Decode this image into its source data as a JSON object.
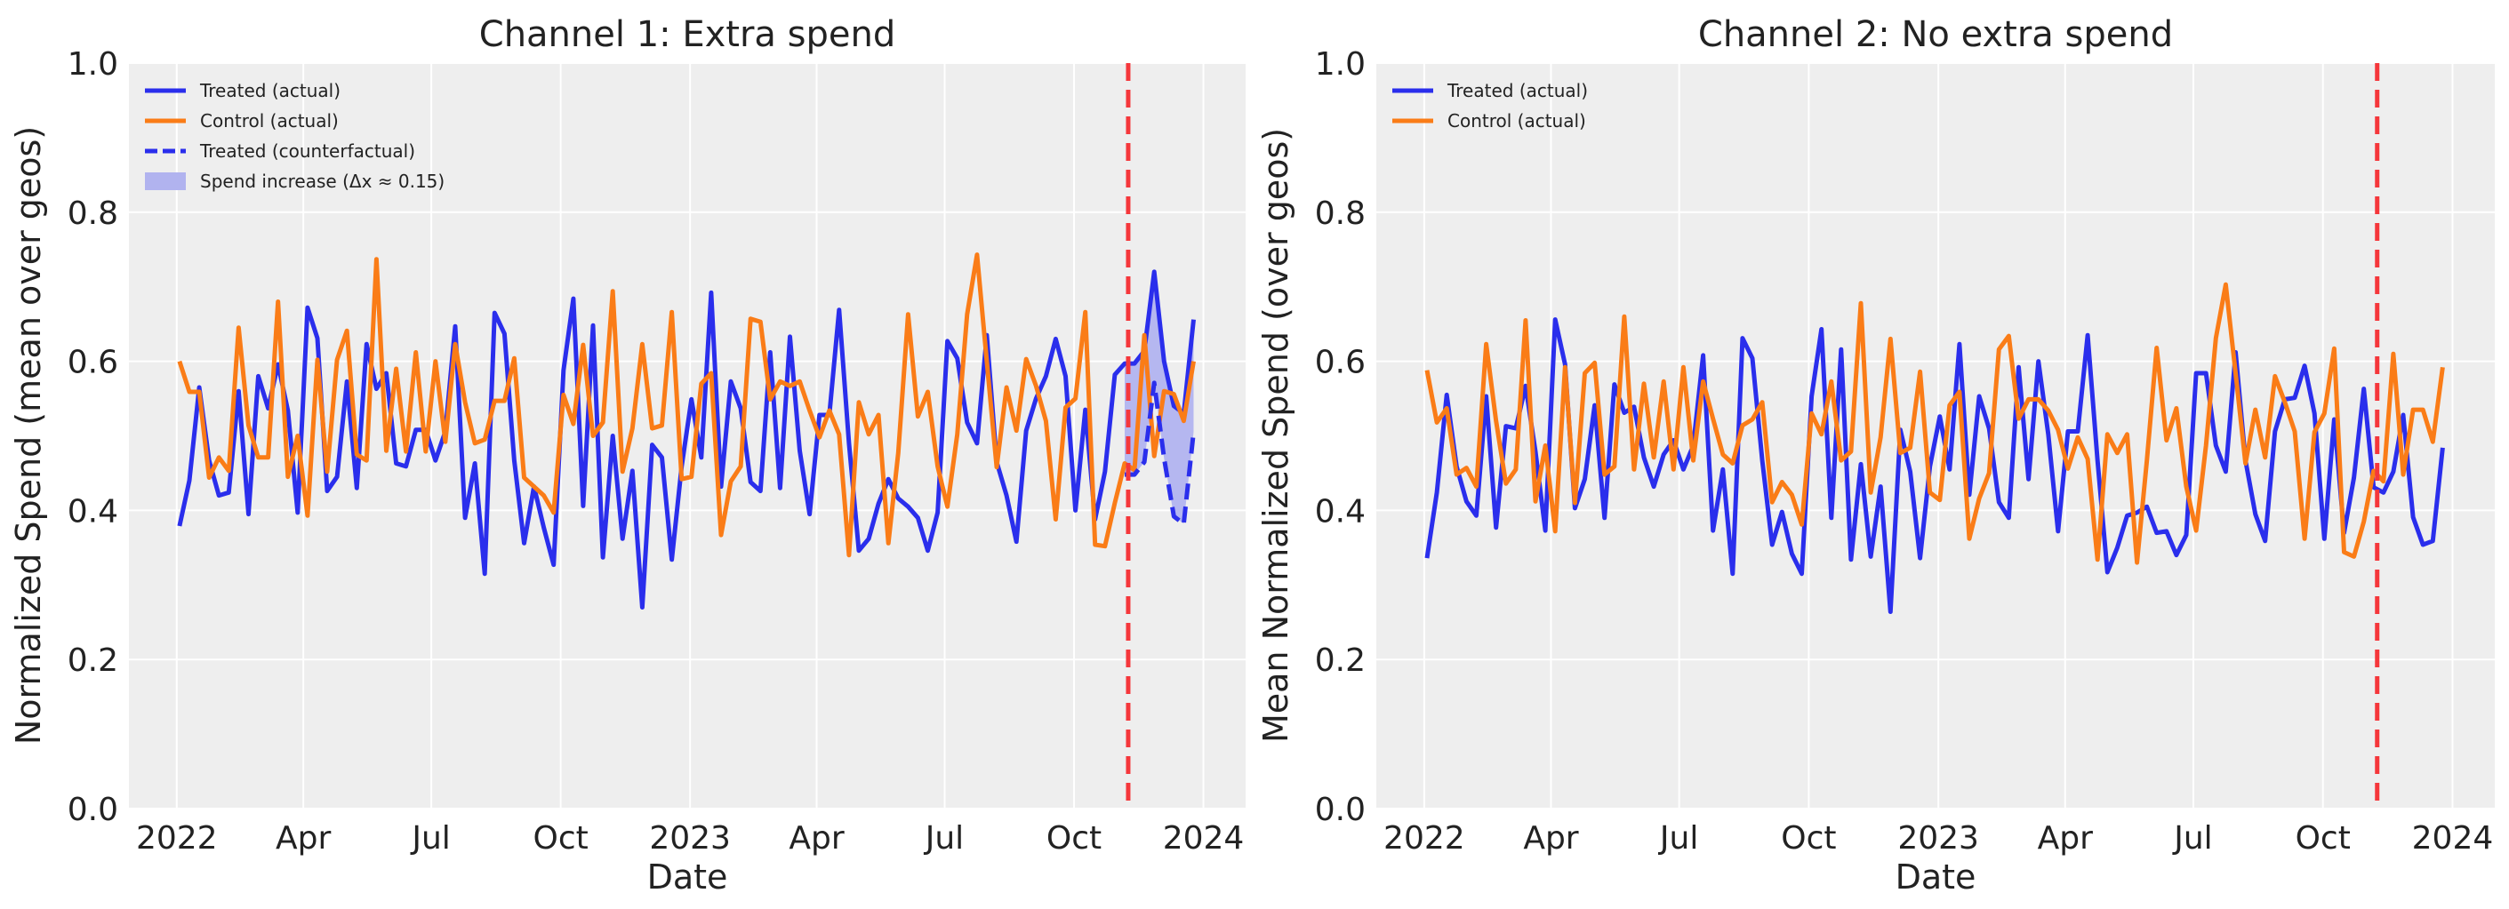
{
  "chart_data": [
    {
      "type": "line",
      "title": "Channel 1: Extra spend",
      "xlabel": "Date",
      "ylabel": "Normalized Spend (mean over geos)",
      "ylim": [
        0,
        1
      ],
      "xlim": [
        "2021-11-28",
        "2024-01-31"
      ],
      "yticks": [
        0.0,
        0.2,
        0.4,
        0.6,
        0.8,
        1.0
      ],
      "ytick_labels": [
        "0.0",
        "0.2",
        "0.4",
        "0.6",
        "0.8",
        "1.0"
      ],
      "xticks": [
        "2022-01-01",
        "2022-04-01",
        "2022-07-01",
        "2022-10-01",
        "2023-01-01",
        "2023-04-01",
        "2023-07-01",
        "2023-10-01",
        "2024-01-01"
      ],
      "xtick_labels": [
        "2022",
        "Apr",
        "Jul",
        "Oct",
        "2023",
        "Apr",
        "Jul",
        "Oct",
        "2024"
      ],
      "grid": true,
      "legend_position": "top-left",
      "intervention_date": "2023-11-06",
      "series": [
        {
          "name": "Treated (actual)",
          "color": "#2a2eec",
          "style": "solid",
          "values": [
            0.379,
            0.44,
            0.565,
            0.467,
            0.42,
            0.424,
            0.56,
            0.395,
            0.58,
            0.537,
            0.596,
            0.534,
            0.397,
            0.672,
            0.631,
            0.426,
            0.445,
            0.573,
            0.43,
            0.623,
            0.563,
            0.584,
            0.463,
            0.459,
            0.508,
            0.508,
            0.467,
            0.506,
            0.647,
            0.39,
            0.463,
            0.315,
            0.665,
            0.637,
            0.467,
            0.356,
            0.432,
            0.377,
            0.327,
            0.588,
            0.684,
            0.406,
            0.648,
            0.337,
            0.5,
            0.362,
            0.453,
            0.27,
            0.488,
            0.471,
            0.334,
            0.459,
            0.549,
            0.471,
            0.692,
            0.432,
            0.573,
            0.537,
            0.438,
            0.426,
            0.612,
            0.43,
            0.633,
            0.48,
            0.395,
            0.528,
            0.528,
            0.669,
            0.49,
            0.346,
            0.362,
            0.409,
            0.442,
            0.416,
            0.405,
            0.39,
            0.346,
            0.397,
            0.627,
            0.604,
            0.518,
            0.49,
            0.635,
            0.465,
            0.42,
            0.358,
            0.507,
            0.55,
            0.58,
            0.63,
            0.58,
            0.4,
            0.535,
            0.388,
            0.452,
            0.582,
            0.597,
            0.597,
            0.614,
            0.72,
            0.6,
            0.54,
            0.53,
            0.656
          ]
        },
        {
          "name": "Control (actual)",
          "color": "#fa7c17",
          "style": "solid",
          "values": [
            0.6,
            0.559,
            0.559,
            0.444,
            0.471,
            0.453,
            0.645,
            0.514,
            0.471,
            0.471,
            0.68,
            0.445,
            0.5,
            0.393,
            0.602,
            0.452,
            0.602,
            0.641,
            0.475,
            0.467,
            0.737,
            0.48,
            0.59,
            0.479,
            0.612,
            0.479,
            0.6,
            0.492,
            0.623,
            0.545,
            0.49,
            0.495,
            0.547,
            0.547,
            0.604,
            0.444,
            0.432,
            0.42,
            0.397,
            0.555,
            0.516,
            0.622,
            0.5,
            0.518,
            0.694,
            0.452,
            0.51,
            0.623,
            0.51,
            0.514,
            0.666,
            0.442,
            0.445,
            0.57,
            0.584,
            0.367,
            0.439,
            0.459,
            0.657,
            0.653,
            0.549,
            0.573,
            0.567,
            0.573,
            0.534,
            0.498,
            0.534,
            0.502,
            0.34,
            0.545,
            0.502,
            0.528,
            0.356,
            0.477,
            0.663,
            0.526,
            0.559,
            0.459,
            0.405,
            0.502,
            0.663,
            0.743,
            0.6,
            0.458,
            0.565,
            0.507,
            0.603,
            0.567,
            0.52,
            0.388,
            0.538,
            0.55,
            0.666,
            0.354,
            0.352,
            0.41,
            0.463,
            0.454,
            0.635,
            0.473,
            0.56,
            0.556,
            0.52,
            0.6
          ]
        },
        {
          "name": "Treated (counterfactual)",
          "color": "#2a2eec",
          "style": "dashed",
          "dates": [
            "2023-11-06",
            "2023-11-13",
            "2023-11-20",
            "2023-11-27",
            "2023-12-04",
            "2023-12-11",
            "2023-12-18",
            "2023-12-25"
          ],
          "values": [
            0.448,
            0.448,
            0.465,
            0.571,
            0.47,
            0.392,
            0.382,
            0.505
          ]
        }
      ],
      "fill": {
        "name": "Spend increase (Δx ≈ 0.15)",
        "color": "#b1b3ef",
        "between": [
          "Treated (counterfactual)",
          "Treated (actual)"
        ]
      }
    },
    {
      "type": "line",
      "title": "Channel 2: No extra spend",
      "xlabel": "Date",
      "ylabel": "Mean Normalized Spend (over geos)",
      "ylim": [
        0,
        1
      ],
      "xlim": [
        "2021-11-28",
        "2024-01-31"
      ],
      "yticks": [
        0.0,
        0.2,
        0.4,
        0.6,
        0.8,
        1.0
      ],
      "ytick_labels": [
        "0.0",
        "0.2",
        "0.4",
        "0.6",
        "0.8",
        "1.0"
      ],
      "xticks": [
        "2022-01-01",
        "2022-04-01",
        "2022-07-01",
        "2022-10-01",
        "2023-01-01",
        "2023-04-01",
        "2023-07-01",
        "2023-10-01",
        "2024-01-01"
      ],
      "xtick_labels": [
        "2022",
        "Apr",
        "Jul",
        "Oct",
        "2023",
        "Apr",
        "Jul",
        "Oct",
        "2024"
      ],
      "grid": true,
      "legend_position": "top-left",
      "intervention_date": "2023-11-06",
      "series": [
        {
          "name": "Treated (actual)",
          "color": "#2a2eec",
          "style": "solid",
          "values": [
            0.336,
            0.424,
            0.555,
            0.459,
            0.412,
            0.393,
            0.553,
            0.377,
            0.513,
            0.51,
            0.567,
            0.479,
            0.373,
            0.656,
            0.596,
            0.403,
            0.442,
            0.541,
            0.39,
            0.569,
            0.531,
            0.539,
            0.471,
            0.432,
            0.475,
            0.494,
            0.455,
            0.487,
            0.608,
            0.373,
            0.455,
            0.315,
            0.631,
            0.604,
            0.467,
            0.354,
            0.398,
            0.342,
            0.315,
            0.553,
            0.643,
            0.39,
            0.616,
            0.334,
            0.462,
            0.338,
            0.432,
            0.264,
            0.508,
            0.452,
            0.336,
            0.459,
            0.526,
            0.455,
            0.623,
            0.421,
            0.553,
            0.51,
            0.411,
            0.39,
            0.592,
            0.442,
            0.6,
            0.502,
            0.372,
            0.506,
            0.506,
            0.635,
            0.467,
            0.317,
            0.35,
            0.393,
            0.397,
            0.405,
            0.37,
            0.372,
            0.34,
            0.367,
            0.584,
            0.584,
            0.487,
            0.452,
            0.612,
            0.467,
            0.395,
            0.359,
            0.506,
            0.549,
            0.551,
            0.594,
            0.53,
            0.362,
            0.522,
            0.37,
            0.444,
            0.563,
            0.431,
            0.424,
            0.452,
            0.528,
            0.391,
            0.354,
            0.359,
            0.484
          ]
        },
        {
          "name": "Control (actual)",
          "color": "#fa7c17",
          "style": "solid",
          "values": [
            0.588,
            0.518,
            0.537,
            0.448,
            0.457,
            0.432,
            0.623,
            0.52,
            0.436,
            0.455,
            0.655,
            0.412,
            0.487,
            0.372,
            0.592,
            0.41,
            0.584,
            0.598,
            0.448,
            0.459,
            0.66,
            0.455,
            0.57,
            0.471,
            0.573,
            0.455,
            0.592,
            0.467,
            0.573,
            0.523,
            0.475,
            0.463,
            0.514,
            0.522,
            0.545,
            0.411,
            0.438,
            0.421,
            0.381,
            0.53,
            0.502,
            0.573,
            0.467,
            0.479,
            0.678,
            0.424,
            0.498,
            0.63,
            0.477,
            0.484,
            0.586,
            0.424,
            0.414,
            0.541,
            0.559,
            0.362,
            0.416,
            0.45,
            0.616,
            0.634,
            0.523,
            0.549,
            0.549,
            0.534,
            0.508,
            0.456,
            0.498,
            0.469,
            0.334,
            0.502,
            0.477,
            0.502,
            0.33,
            0.467,
            0.618,
            0.494,
            0.537,
            0.432,
            0.373,
            0.487,
            0.631,
            0.703,
            0.584,
            0.463,
            0.535,
            0.471,
            0.58,
            0.545,
            0.506,
            0.362,
            0.505,
            0.53,
            0.617,
            0.344,
            0.338,
            0.385,
            0.453,
            0.439,
            0.61,
            0.448,
            0.535,
            0.535,
            0.492,
            0.592
          ]
        }
      ]
    }
  ],
  "dates": [
    "2022-01-03",
    "2022-01-10",
    "2022-01-17",
    "2022-01-24",
    "2022-01-31",
    "2022-02-07",
    "2022-02-14",
    "2022-02-21",
    "2022-02-28",
    "2022-03-07",
    "2022-03-14",
    "2022-03-21",
    "2022-03-28",
    "2022-04-04",
    "2022-04-11",
    "2022-04-18",
    "2022-04-25",
    "2022-05-02",
    "2022-05-09",
    "2022-05-16",
    "2022-05-23",
    "2022-05-30",
    "2022-06-06",
    "2022-06-13",
    "2022-06-20",
    "2022-06-27",
    "2022-07-04",
    "2022-07-11",
    "2022-07-18",
    "2022-07-25",
    "2022-08-01",
    "2022-08-08",
    "2022-08-15",
    "2022-08-22",
    "2022-08-29",
    "2022-09-05",
    "2022-09-12",
    "2022-09-19",
    "2022-09-26",
    "2022-10-03",
    "2022-10-10",
    "2022-10-17",
    "2022-10-24",
    "2022-10-31",
    "2022-11-07",
    "2022-11-14",
    "2022-11-21",
    "2022-11-28",
    "2022-12-05",
    "2022-12-12",
    "2022-12-19",
    "2022-12-26",
    "2023-01-02",
    "2023-01-09",
    "2023-01-16",
    "2023-01-23",
    "2023-01-30",
    "2023-02-06",
    "2023-02-13",
    "2023-02-20",
    "2023-02-27",
    "2023-03-06",
    "2023-03-13",
    "2023-03-20",
    "2023-03-27",
    "2023-04-03",
    "2023-04-10",
    "2023-04-17",
    "2023-04-24",
    "2023-05-01",
    "2023-05-08",
    "2023-05-15",
    "2023-05-22",
    "2023-05-29",
    "2023-06-05",
    "2023-06-12",
    "2023-06-19",
    "2023-06-26",
    "2023-07-03",
    "2023-07-10",
    "2023-07-17",
    "2023-07-24",
    "2023-07-31",
    "2023-08-07",
    "2023-08-14",
    "2023-08-21",
    "2023-08-28",
    "2023-09-04",
    "2023-09-11",
    "2023-09-18",
    "2023-09-25",
    "2023-10-02",
    "2023-10-09",
    "2023-10-16",
    "2023-10-23",
    "2023-10-30",
    "2023-11-06",
    "2023-11-13",
    "2023-11-20",
    "2023-11-27",
    "2023-12-04",
    "2023-12-11",
    "2023-12-18",
    "2023-12-25"
  ],
  "colors": {
    "background": "#eeeeee",
    "grid": "#ffffff",
    "intervention_line": "#f5373b"
  }
}
